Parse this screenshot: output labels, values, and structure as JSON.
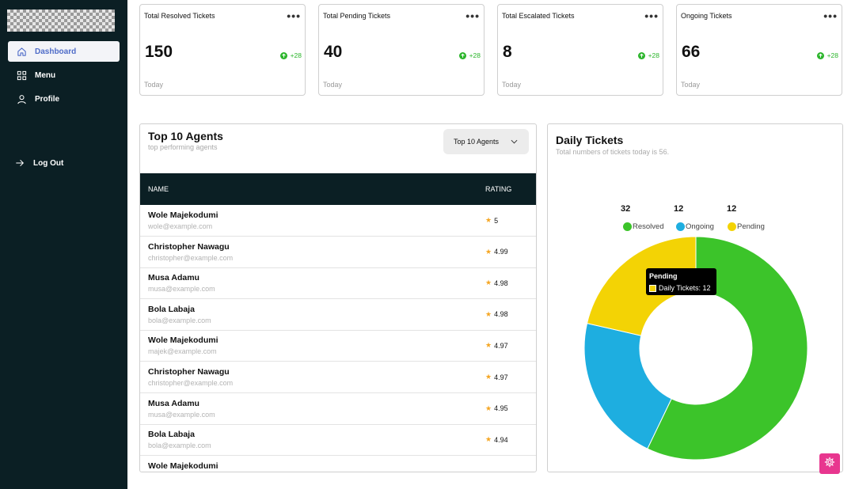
{
  "sidebar": {
    "items": [
      {
        "label": "Dashboard",
        "icon": "home-icon",
        "active": true
      },
      {
        "label": "Menu",
        "icon": "grid-icon"
      },
      {
        "label": "Profile",
        "icon": "user-icon"
      },
      {
        "label": "Log Out",
        "icon": "logout-arrow-icon"
      }
    ]
  },
  "stats": [
    {
      "title": "Total Resolved Tickets",
      "value": "150",
      "delta": "+28",
      "period": "Today"
    },
    {
      "title": "Total Pending Tickets",
      "value": "40",
      "delta": "+28",
      "period": "Today"
    },
    {
      "title": "Total Escalated Tickets",
      "value": "8",
      "delta": "+28",
      "period": "Today"
    },
    {
      "title": "Ongoing Tickets",
      "value": "66",
      "delta": "+28",
      "period": "Today"
    }
  ],
  "agents": {
    "title": "Top 10 Agents",
    "subtitle": "top performing agents",
    "select_value": "Top 10 Agents",
    "columns": [
      "NAME",
      "RATING"
    ],
    "rows": [
      {
        "name": "Wole Majekodumi",
        "email": "wole@example.com",
        "rating": "5"
      },
      {
        "name": "Christopher Nawagu",
        "email": "christopher@example.com",
        "rating": "4.99"
      },
      {
        "name": "Musa Adamu",
        "email": "musa@example.com",
        "rating": "4.98"
      },
      {
        "name": "Bola Labaja",
        "email": "bola@example.com",
        "rating": "4.98"
      },
      {
        "name": "Wole Majekodumi",
        "email": "majek@example.com",
        "rating": "4.97"
      },
      {
        "name": "Christopher Nawagu",
        "email": "christopher@example.com",
        "rating": "4.97"
      },
      {
        "name": "Musa Adamu",
        "email": "musa@example.com",
        "rating": "4.95"
      },
      {
        "name": "Bola Labaja",
        "email": "bola@example.com",
        "rating": "4.94"
      },
      {
        "name": "Wole Majekodumi",
        "email": "",
        "rating": ""
      }
    ]
  },
  "daily": {
    "title": "Daily Tickets",
    "subtitle": "Total numbers of tickets today is 56.",
    "tooltip": {
      "title": "Pending",
      "label": "Daily Tickets: 12"
    }
  },
  "colors": {
    "resolved": "#3cc42a",
    "ongoing": "#1eaee0",
    "pending": "#f3d305",
    "sidebar": "#0b1f24",
    "accent": "#e8368f"
  },
  "chart_data": {
    "type": "pie",
    "categories": [
      "Resolved",
      "Ongoing",
      "Pending"
    ],
    "values": [
      32,
      12,
      12
    ],
    "value_labels": [
      "32",
      "12",
      "12"
    ],
    "donut": true
  }
}
